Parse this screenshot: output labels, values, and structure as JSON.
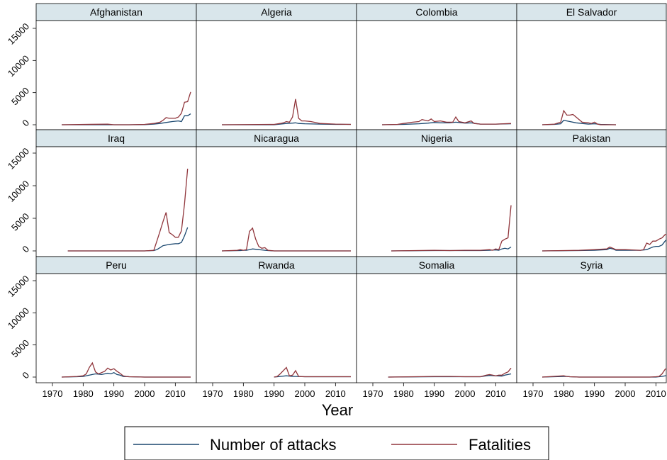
{
  "chart_data": {
    "type": "line",
    "xlabel": "Year",
    "xlim": [
      1970,
      2015
    ],
    "ylim": [
      0,
      15000
    ],
    "x_ticks": [
      "1970",
      "1980",
      "1990",
      "2000",
      "2010"
    ],
    "y_ticks": [
      "0",
      "5000",
      "10000",
      "15000"
    ],
    "grid": false,
    "legend_position": "bottom",
    "legend": [
      {
        "label": "Number of attacks",
        "color": "#1a476f"
      },
      {
        "label": "Fatalities",
        "color": "#90353b"
      }
    ],
    "panels": [
      {
        "title": "Afghanistan",
        "series": [
          {
            "name": "Number of attacks",
            "x": [
              1973,
              1990,
              1995,
              2000,
              2003,
              2005,
              2007,
              2009,
              2011,
              2012,
              2013,
              2014,
              2015
            ],
            "y": [
              0,
              0,
              0,
              20,
              100,
              200,
              350,
              500,
              600,
              500,
              1400,
              1400,
              1700
            ]
          },
          {
            "name": "Fatalities",
            "x": [
              1973,
              1988,
              1990,
              1995,
              2000,
              2003,
              2005,
              2006,
              2007,
              2008,
              2009,
              2010,
              2011,
              2012,
              2013,
              2014,
              2015
            ],
            "y": [
              0,
              100,
              0,
              0,
              50,
              200,
              400,
              700,
              1100,
              1000,
              1000,
              1000,
              1200,
              1800,
              3500,
              3600,
              5100
            ]
          }
        ]
      },
      {
        "title": "Algeria",
        "series": [
          {
            "name": "Number of attacks",
            "x": [
              1973,
              1990,
              1992,
              1994,
              1996,
              1997,
              1998,
              2000,
              2005,
              2010,
              2015
            ],
            "y": [
              0,
              0,
              100,
              200,
              250,
              300,
              200,
              150,
              100,
              50,
              50
            ]
          },
          {
            "name": "Fatalities",
            "x": [
              1973,
              1990,
              1992,
              1993,
              1994,
              1995,
              1996,
              1997,
              1998,
              1999,
              2000,
              2002,
              2005,
              2010,
              2015
            ],
            "y": [
              0,
              50,
              200,
              300,
              500,
              400,
              1200,
              4000,
              1000,
              600,
              600,
              500,
              200,
              100,
              50
            ]
          }
        ]
      },
      {
        "title": "Colombia",
        "series": [
          {
            "name": "Number of attacks",
            "x": [
              1973,
              1980,
              1985,
              1988,
              1990,
              1992,
              1995,
              1997,
              2000,
              2002,
              2005,
              2010,
              2015
            ],
            "y": [
              0,
              50,
              150,
              250,
              350,
              300,
              300,
              400,
              250,
              300,
              100,
              100,
              150
            ]
          },
          {
            "name": "Fatalities",
            "x": [
              1973,
              1978,
              1980,
              1983,
              1985,
              1986,
              1988,
              1989,
              1990,
              1992,
              1994,
              1996,
              1997,
              1998,
              2000,
              2002,
              2003,
              2005,
              2010,
              2015
            ],
            "y": [
              0,
              50,
              200,
              400,
              500,
              800,
              600,
              900,
              500,
              600,
              400,
              400,
              1200,
              500,
              300,
              600,
              200,
              100,
              100,
              200
            ]
          }
        ]
      },
      {
        "title": "El Salvador",
        "series": [
          {
            "name": "Number of attacks",
            "x": [
              1973,
              1977,
              1979,
              1980,
              1982,
              1984,
              1986,
              1988,
              1990,
              1992,
              1997
            ],
            "y": [
              0,
              50,
              150,
              700,
              500,
              300,
              200,
              100,
              150,
              50,
              0
            ]
          },
          {
            "name": "Fatalities",
            "x": [
              1973,
              1977,
              1979,
              1980,
              1981,
              1982,
              1983,
              1984,
              1985,
              1986,
              1988,
              1989,
              1990,
              1991,
              1992,
              1997
            ],
            "y": [
              0,
              100,
              400,
              2200,
              1500,
              1500,
              1600,
              1200,
              800,
              400,
              300,
              200,
              400,
              100,
              0,
              0
            ]
          }
        ]
      },
      {
        "title": "Iraq",
        "series": [
          {
            "name": "Number of attacks",
            "x": [
              1975,
              1990,
              2000,
              2003,
              2004,
              2005,
              2006,
              2007,
              2008,
              2010,
              2011,
              2012,
              2013,
              2014
            ],
            "y": [
              0,
              0,
              0,
              50,
              200,
              500,
              800,
              900,
              1000,
              1100,
              1100,
              1300,
              2300,
              3600
            ]
          },
          {
            "name": "Fatalities",
            "x": [
              1975,
              1990,
              2000,
              2003,
              2004,
              2005,
              2006,
              2007,
              2008,
              2009,
              2010,
              2011,
              2012,
              2013,
              2014
            ],
            "y": [
              0,
              0,
              0,
              100,
              1500,
              3000,
              4500,
              5900,
              2800,
              2500,
              2100,
              2100,
              3100,
              7200,
              12600
            ]
          }
        ]
      },
      {
        "title": "Nicaragua",
        "series": [
          {
            "name": "Number of attacks",
            "x": [
              1973,
              1979,
              1980,
              1981,
              1982,
              1983,
              1984,
              1985,
              1986,
              1987,
              1988,
              1990,
              2000,
              2010,
              2015
            ],
            "y": [
              0,
              50,
              100,
              100,
              200,
              300,
              250,
              200,
              150,
              100,
              50,
              0,
              0,
              0,
              0
            ]
          },
          {
            "name": "Fatalities",
            "x": [
              1973,
              1978,
              1979,
              1980,
              1981,
              1982,
              1983,
              1984,
              1985,
              1986,
              1987,
              1988,
              1989,
              1990,
              2000,
              2010,
              2015
            ],
            "y": [
              0,
              100,
              200,
              100,
              200,
              3000,
              3500,
              1800,
              700,
              400,
              500,
              100,
              50,
              0,
              0,
              0,
              0
            ]
          }
        ]
      },
      {
        "title": "Nigeria",
        "series": [
          {
            "name": "Number of attacks",
            "x": [
              1976,
              1990,
              1995,
              2000,
              2005,
              2008,
              2010,
              2011,
              2012,
              2013,
              2014,
              2015
            ],
            "y": [
              0,
              50,
              50,
              50,
              50,
              100,
              150,
              100,
              300,
              400,
              300,
              600
            ]
          },
          {
            "name": "Fatalities",
            "x": [
              1976,
              1990,
              1995,
              2000,
              2005,
              2008,
              2009,
              2010,
              2011,
              2012,
              2013,
              2014,
              2015
            ],
            "y": [
              0,
              100,
              50,
              100,
              100,
              200,
              100,
              300,
              200,
              1500,
              1800,
              2000,
              7000
            ]
          }
        ]
      },
      {
        "title": "Pakistan",
        "series": [
          {
            "name": "Number of attacks",
            "x": [
              1973,
              1985,
              1990,
              1994,
              1995,
              1996,
              1997,
              2000,
              2005,
              2007,
              2008,
              2009,
              2010,
              2011,
              2012,
              2013,
              2014,
              2015
            ],
            "y": [
              0,
              50,
              100,
              200,
              400,
              300,
              100,
              100,
              100,
              200,
              400,
              600,
              700,
              700,
              900,
              1500,
              2000,
              2000
            ]
          },
          {
            "name": "Fatalities",
            "x": [
              1973,
              1985,
              1990,
              1994,
              1995,
              1996,
              1997,
              2000,
              2005,
              2006,
              2007,
              2008,
              2009,
              2010,
              2011,
              2012,
              2013,
              2014,
              2015
            ],
            "y": [
              0,
              100,
              200,
              300,
              600,
              400,
              200,
              200,
              100,
              200,
              1200,
              1000,
              1500,
              1500,
              1800,
              2000,
              2500,
              2600,
              2600
            ]
          }
        ]
      },
      {
        "title": "Peru",
        "series": [
          {
            "name": "Number of attacks",
            "x": [
              1973,
              1978,
              1980,
              1982,
              1983,
              1984,
              1986,
              1987,
              1988,
              1989,
              1990,
              1991,
              1992,
              1993,
              1995,
              2000,
              2005,
              2010,
              2015
            ],
            "y": [
              0,
              50,
              100,
              300,
              400,
              500,
              400,
              500,
              600,
              500,
              700,
              400,
              300,
              100,
              50,
              0,
              0,
              0,
              0
            ]
          },
          {
            "name": "Fatalities",
            "x": [
              1973,
              1978,
              1980,
              1981,
              1982,
              1983,
              1984,
              1985,
              1986,
              1987,
              1988,
              1989,
              1990,
              1991,
              1992,
              1993,
              1994,
              1995,
              2000,
              2005,
              2010,
              2015
            ],
            "y": [
              0,
              100,
              200,
              500,
              1500,
              2200,
              800,
              500,
              700,
              900,
              1400,
              1100,
              1300,
              900,
              600,
              200,
              100,
              50,
              0,
              0,
              0,
              0
            ]
          }
        ]
      },
      {
        "title": "Rwanda",
        "series": [
          {
            "name": "Number of attacks",
            "x": [
              1990,
              1992,
              1994,
              1996,
              1997,
              2000,
              2005,
              2010,
              2015
            ],
            "y": [
              0,
              100,
              200,
              100,
              100,
              50,
              50,
              50,
              50
            ]
          },
          {
            "name": "Fatalities",
            "x": [
              1990,
              1991,
              1992,
              1993,
              1994,
              1995,
              1996,
              1997,
              1998,
              2000,
              2005,
              2010,
              2015
            ],
            "y": [
              0,
              100,
              500,
              1000,
              1500,
              200,
              300,
              1000,
              100,
              50,
              50,
              50,
              50
            ]
          }
        ]
      },
      {
        "title": "Somalia",
        "series": [
          {
            "name": "Number of attacks",
            "x": [
              1975,
              1990,
              2000,
              2005,
              2007,
              2008,
              2010,
              2012,
              2013,
              2014,
              2015
            ],
            "y": [
              0,
              50,
              50,
              50,
              200,
              250,
              200,
              150,
              300,
              400,
              500
            ]
          },
          {
            "name": "Fatalities",
            "x": [
              1975,
              1990,
              1995,
              2000,
              2005,
              2007,
              2008,
              2009,
              2010,
              2011,
              2012,
              2013,
              2014,
              2015
            ],
            "y": [
              0,
              100,
              100,
              50,
              50,
              300,
              400,
              300,
              200,
              300,
              300,
              600,
              800,
              1400
            ]
          }
        ]
      },
      {
        "title": "Syria",
        "series": [
          {
            "name": "Number of attacks",
            "x": [
              1973,
              1980,
              1981,
              1982,
              1985,
              1990,
              2000,
              2005,
              2010,
              2011,
              2012,
              2013,
              2014,
              2015
            ],
            "y": [
              0,
              100,
              100,
              50,
              0,
              0,
              0,
              0,
              0,
              50,
              100,
              200,
              300,
              400
            ]
          },
          {
            "name": "Fatalities",
            "x": [
              1973,
              1980,
              1981,
              1982,
              1985,
              1990,
              2000,
              2005,
              2008,
              2010,
              2011,
              2012,
              2013,
              2014,
              2015
            ],
            "y": [
              0,
              200,
              100,
              50,
              0,
              0,
              0,
              0,
              0,
              50,
              100,
              500,
              1200,
              1500,
              1800
            ]
          }
        ]
      }
    ]
  }
}
